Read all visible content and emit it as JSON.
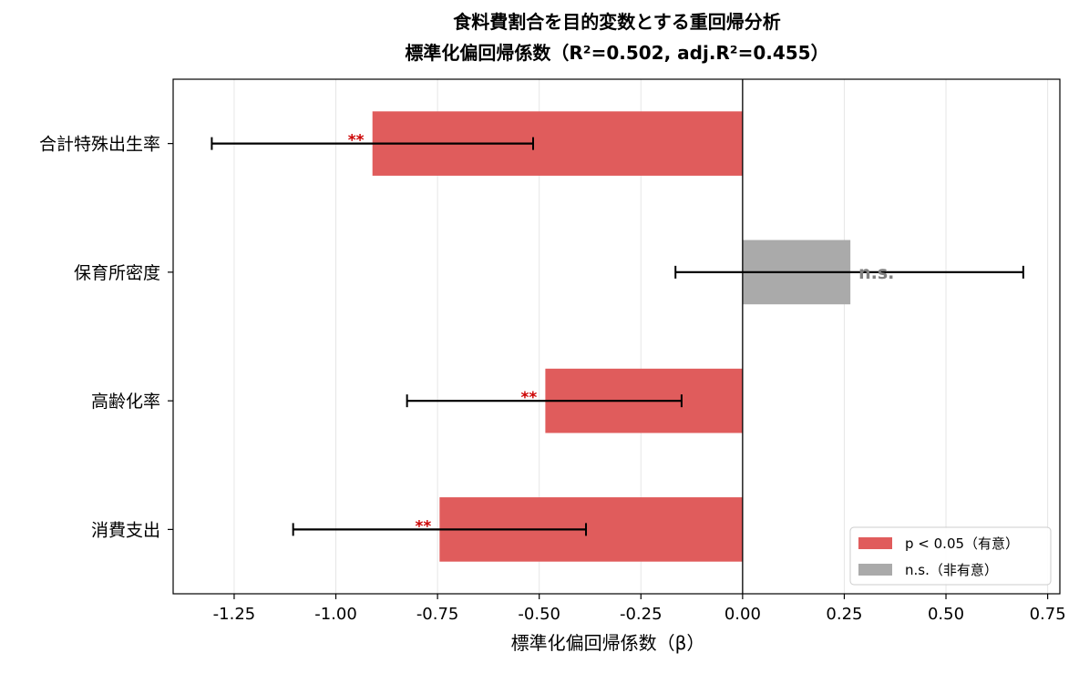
{
  "chart_data": {
    "type": "bar",
    "orientation": "horizontal",
    "title": "食料費割合を目的変数とする重回帰分析",
    "subtitle": "標準化偏回帰係数（R²=0.502, adj.R²=0.455）",
    "xlabel": "標準化偏回帰係数（β）",
    "ylabel": "",
    "xlim": [
      -1.4,
      0.78
    ],
    "x_ticks": [
      -1.25,
      -1.0,
      -0.75,
      -0.5,
      -0.25,
      0.0,
      0.25,
      0.5,
      0.75
    ],
    "x_tick_labels": [
      "-1.25",
      "-1.00",
      "-0.75",
      "-0.50",
      "-0.25",
      "0.00",
      "0.25",
      "0.50",
      "0.75"
    ],
    "grid": "vertical",
    "categories": [
      "合計特殊出生率",
      "保育所密度",
      "高齢化率",
      "消費支出"
    ],
    "values": [
      -0.91,
      0.265,
      -0.485,
      -0.745
    ],
    "ci_low": [
      -1.305,
      -0.165,
      -0.825,
      -1.105
    ],
    "ci_high": [
      -0.515,
      0.69,
      -0.15,
      -0.385
    ],
    "significant": [
      true,
      false,
      true,
      true
    ],
    "annotations": [
      "**",
      "n.s.",
      "**",
      "**"
    ],
    "legend": {
      "position": "lower-right",
      "entries": [
        {
          "label": "p < 0.05（有意）",
          "color": "#e05c5c"
        },
        {
          "label": "n.s.（非有意）",
          "color": "#aaaaaa"
        }
      ]
    },
    "colors": {
      "significant": "#e05c5c",
      "nonsignificant": "#aaaaaa",
      "sig_marker": "#cc0000",
      "ns_marker": "#808080",
      "error_bar": "#000000",
      "grid": "#e6e6e6"
    }
  }
}
